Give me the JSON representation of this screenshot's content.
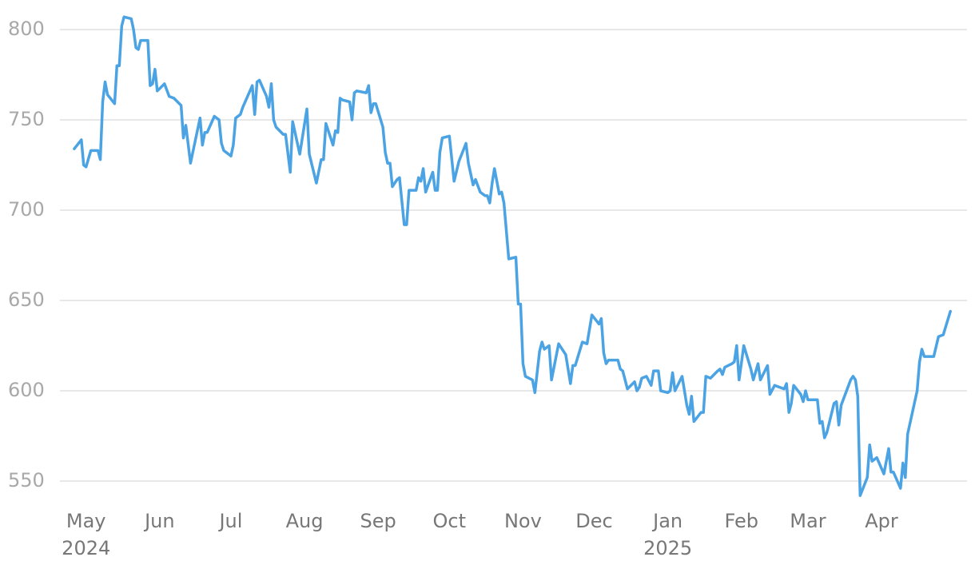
{
  "chart_data": {
    "type": "line",
    "color": "#4ba3e3",
    "grid": true,
    "xlim": [
      "2024-04-21",
      "2025-05-07"
    ],
    "xticks": [
      {
        "value": "2024-05-01",
        "label": "May\n2024"
      },
      {
        "value": "2024-06-01",
        "label": "Jun"
      },
      {
        "value": "2024-07-01",
        "label": "Jul"
      },
      {
        "value": "2024-08-01",
        "label": "Aug"
      },
      {
        "value": "2024-09-01",
        "label": "Sep"
      },
      {
        "value": "2024-10-01",
        "label": "Oct"
      },
      {
        "value": "2024-11-01",
        "label": "Nov"
      },
      {
        "value": "2024-12-01",
        "label": "Dec"
      },
      {
        "value": "2025-01-01",
        "label": "Jan\n2025"
      },
      {
        "value": "2025-02-01",
        "label": "Feb"
      },
      {
        "value": "2025-03-01",
        "label": "Mar"
      },
      {
        "value": "2025-04-01",
        "label": "Apr"
      }
    ],
    "ylim": [
      540,
      810
    ],
    "yticks": [
      550,
      600,
      650,
      700,
      750,
      800
    ],
    "x": [
      "2024-04-26",
      "2024-04-29",
      "2024-04-30",
      "2024-05-01",
      "2024-05-03",
      "2024-05-06",
      "2024-05-07",
      "2024-05-08",
      "2024-05-09",
      "2024-05-10",
      "2024-05-13",
      "2024-05-14",
      "2024-05-15",
      "2024-05-16",
      "2024-05-17",
      "2024-05-20",
      "2024-05-21",
      "2024-05-22",
      "2024-05-23",
      "2024-05-24",
      "2024-05-27",
      "2024-05-28",
      "2024-05-29",
      "2024-05-30",
      "2024-05-31",
      "2024-06-03",
      "2024-06-05",
      "2024-06-07",
      "2024-06-10",
      "2024-06-11",
      "2024-06-12",
      "2024-06-14",
      "2024-06-18",
      "2024-06-19",
      "2024-06-20",
      "2024-06-21",
      "2024-06-24",
      "2024-06-26",
      "2024-06-27",
      "2024-06-28",
      "2024-07-01",
      "2024-07-02",
      "2024-07-03",
      "2024-07-05",
      "2024-07-06",
      "2024-07-10",
      "2024-07-11",
      "2024-07-12",
      "2024-07-13",
      "2024-07-16",
      "2024-07-17",
      "2024-07-18",
      "2024-07-19",
      "2024-07-20",
      "2024-07-23",
      "2024-07-24",
      "2024-07-26",
      "2024-07-27",
      "2024-07-30",
      "2024-08-02",
      "2024-08-03",
      "2024-08-06",
      "2024-08-08",
      "2024-08-09",
      "2024-08-10",
      "2024-08-13",
      "2024-08-14",
      "2024-08-15",
      "2024-08-16",
      "2024-08-17",
      "2024-08-20",
      "2024-08-21",
      "2024-08-22",
      "2024-08-23",
      "2024-08-27",
      "2024-08-28",
      "2024-08-29",
      "2024-08-30",
      "2024-08-31",
      "2024-09-03",
      "2024-09-04",
      "2024-09-05",
      "2024-09-06",
      "2024-09-07",
      "2024-09-09",
      "2024-09-10",
      "2024-09-12",
      "2024-09-13",
      "2024-09-14",
      "2024-09-17",
      "2024-09-18",
      "2024-09-19",
      "2024-09-20",
      "2024-09-21",
      "2024-09-24",
      "2024-09-25",
      "2024-09-26",
      "2024-09-27",
      "2024-09-28",
      "2024-10-01",
      "2024-10-03",
      "2024-10-05",
      "2024-10-08",
      "2024-10-09",
      "2024-10-11",
      "2024-10-12",
      "2024-10-14",
      "2024-10-16",
      "2024-10-17",
      "2024-10-18",
      "2024-10-19",
      "2024-10-20",
      "2024-10-22",
      "2024-10-23",
      "2024-10-24",
      "2024-10-26",
      "2024-10-29",
      "2024-10-30",
      "2024-10-31",
      "2024-11-01",
      "2024-11-02",
      "2024-11-05",
      "2024-11-06",
      "2024-11-08",
      "2024-11-09",
      "2024-11-10",
      "2024-11-12",
      "2024-11-13",
      "2024-11-16",
      "2024-11-19",
      "2024-11-21",
      "2024-11-22",
      "2024-11-23",
      "2024-11-26",
      "2024-11-28",
      "2024-11-30",
      "2024-12-03",
      "2024-12-04",
      "2024-12-05",
      "2024-12-06",
      "2024-12-07",
      "2024-12-11",
      "2024-12-12",
      "2024-12-13",
      "2024-12-15",
      "2024-12-18",
      "2024-12-19",
      "2024-12-20",
      "2024-12-21",
      "2024-12-23",
      "2024-12-25",
      "2024-12-26",
      "2024-12-28",
      "2024-12-29",
      "2025-01-01",
      "2025-01-02",
      "2025-01-03",
      "2025-01-04",
      "2025-01-07",
      "2025-01-09",
      "2025-01-10",
      "2025-01-11",
      "2025-01-12",
      "2025-01-15",
      "2025-01-16",
      "2025-01-17",
      "2025-01-19",
      "2025-01-22",
      "2025-01-23",
      "2025-01-24",
      "2025-01-25",
      "2025-01-28",
      "2025-01-29",
      "2025-01-30",
      "2025-01-31",
      "2025-02-02",
      "2025-02-05",
      "2025-02-06",
      "2025-02-08",
      "2025-02-09",
      "2025-02-12",
      "2025-02-13",
      "2025-02-15",
      "2025-02-17",
      "2025-02-19",
      "2025-02-20",
      "2025-02-21",
      "2025-02-22",
      "2025-02-23",
      "2025-02-26",
      "2025-02-27",
      "2025-02-28",
      "2025-03-01",
      "2025-03-05",
      "2025-03-06",
      "2025-03-07",
      "2025-03-08",
      "2025-03-09",
      "2025-03-12",
      "2025-03-13",
      "2025-03-14",
      "2025-03-15",
      "2025-03-19",
      "2025-03-20",
      "2025-03-21",
      "2025-03-22",
      "2025-03-23",
      "2025-03-26",
      "2025-03-27",
      "2025-03-28",
      "2025-03-30",
      "2025-04-02",
      "2025-04-04",
      "2025-04-05",
      "2025-04-06",
      "2025-04-09",
      "2025-04-10",
      "2025-04-11",
      "2025-04-12",
      "2025-04-16",
      "2025-04-17",
      "2025-04-18",
      "2025-04-19",
      "2025-04-23",
      "2025-04-25",
      "2025-04-27",
      "2025-04-30"
    ],
    "values": [
      734,
      739,
      725,
      724,
      733,
      733,
      728,
      760,
      771,
      764,
      759,
      780,
      780,
      802,
      807,
      806,
      800,
      790,
      789,
      794,
      794,
      769,
      770,
      778,
      766,
      770,
      763,
      762,
      758,
      740,
      747,
      726,
      751,
      736,
      743,
      743,
      752,
      750,
      737,
      733,
      730,
      736,
      751,
      753,
      757,
      769,
      753,
      771,
      772,
      763,
      757,
      770,
      750,
      746,
      742,
      742,
      721,
      749,
      731,
      756,
      731,
      715,
      728,
      728,
      748,
      736,
      744,
      743,
      762,
      761,
      760,
      750,
      765,
      766,
      765,
      769,
      754,
      759,
      759,
      746,
      732,
      726,
      726,
      713,
      717,
      718,
      692,
      692,
      711,
      711,
      718,
      716,
      723,
      710,
      721,
      711,
      711,
      732,
      740,
      741,
      716,
      727,
      737,
      726,
      714,
      717,
      710,
      708,
      708,
      704,
      715,
      723,
      709,
      710,
      704,
      673,
      674,
      648,
      648,
      615,
      608,
      606,
      599,
      622,
      627,
      623,
      625,
      606,
      626,
      620,
      604,
      614,
      614,
      627,
      626,
      642,
      637,
      640,
      621,
      615,
      617,
      617,
      612,
      611,
      601,
      605,
      600,
      602,
      607,
      608,
      603,
      611,
      611,
      600,
      599,
      600,
      610,
      600,
      608,
      592,
      587,
      597,
      583,
      588,
      588,
      608,
      607,
      611,
      612,
      609,
      613,
      615,
      616,
      625,
      606,
      625,
      612,
      606,
      615,
      606,
      614,
      598,
      603,
      602,
      601,
      604,
      588,
      593,
      603,
      598,
      594,
      600,
      595,
      595,
      582,
      583,
      574,
      577,
      593,
      594,
      581,
      592,
      606,
      608,
      606,
      597,
      542,
      552,
      570,
      561,
      563,
      554,
      568,
      555,
      555,
      546,
      560,
      552,
      576,
      600,
      616,
      623,
      619,
      619,
      630,
      631,
      644
    ]
  }
}
